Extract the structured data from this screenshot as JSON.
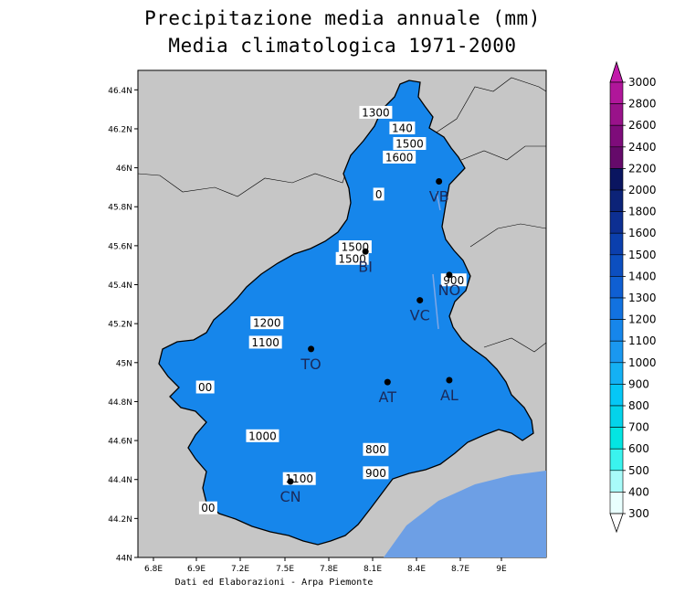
{
  "title": "Precipitazione media annuale (mm)",
  "subtitle": "Media climatologica 1971-2000",
  "footer": "Dati ed Elaborazioni - Arpa Piemonte",
  "map": {
    "lat_ticks": [
      "46.4N",
      "46.2N",
      "46N",
      "45.8N",
      "45.6N",
      "45.4N",
      "45.2N",
      "45N",
      "44.8N",
      "44.6N",
      "44.4N",
      "44.2N",
      "44N"
    ],
    "lon_ticks": [
      "6.8E",
      "6.9E",
      "7.2E",
      "7.5E",
      "7.8E",
      "8.1E",
      "8.4E",
      "8.7E",
      "9E"
    ],
    "cities": [
      {
        "code": "VB",
        "lon": 8.55,
        "lat": 45.93
      },
      {
        "code": "BI",
        "lon": 8.05,
        "lat": 45.57
      },
      {
        "code": "NO",
        "lon": 8.62,
        "lat": 45.45
      },
      {
        "code": "VC",
        "lon": 8.42,
        "lat": 45.32
      },
      {
        "code": "TO",
        "lon": 7.68,
        "lat": 45.07
      },
      {
        "code": "AT",
        "lon": 8.2,
        "lat": 44.9
      },
      {
        "code": "AL",
        "lon": 8.62,
        "lat": 44.91
      },
      {
        "code": "CN",
        "lon": 7.54,
        "lat": 44.39
      }
    ],
    "contour_labels": [
      {
        "text": "1300",
        "lon": 8.12,
        "lat": 46.28
      },
      {
        "text": "140",
        "lon": 8.3,
        "lat": 46.2
      },
      {
        "text": "1500",
        "lon": 8.35,
        "lat": 46.12
      },
      {
        "text": "1600",
        "lon": 8.28,
        "lat": 46.05
      },
      {
        "text": "1500",
        "lon": 7.98,
        "lat": 45.59
      },
      {
        "text": "1500",
        "lon": 7.96,
        "lat": 45.53
      },
      {
        "text": "900",
        "lon": 8.65,
        "lat": 45.42
      },
      {
        "text": "1200",
        "lon": 7.38,
        "lat": 45.2
      },
      {
        "text": "1100",
        "lon": 7.37,
        "lat": 45.1
      },
      {
        "text": "1000",
        "lon": 7.35,
        "lat": 44.62
      },
      {
        "text": "800",
        "lon": 8.12,
        "lat": 44.55
      },
      {
        "text": "900",
        "lon": 8.12,
        "lat": 44.43
      },
      {
        "text": "1100",
        "lon": 7.6,
        "lat": 44.4
      },
      {
        "text": "0",
        "lon": 8.14,
        "lat": 45.86
      },
      {
        "text": "00",
        "lon": 6.96,
        "lat": 44.87
      },
      {
        "text": "00",
        "lon": 6.98,
        "lat": 44.25
      }
    ]
  },
  "legend": {
    "levels": [
      "3000",
      "2800",
      "2600",
      "2400",
      "2200",
      "2000",
      "1800",
      "1600",
      "1500",
      "1400",
      "1300",
      "1200",
      "1100",
      "1000",
      "900",
      "800",
      "700",
      "600",
      "500",
      "400",
      "300"
    ],
    "colors": [
      "#c21aaa",
      "#b0169a",
      "#99128a",
      "#7e0c7a",
      "#650a6a",
      "#0a1560",
      "#0c2378",
      "#0d2f92",
      "#0b3fad",
      "#0c4fc0",
      "#0f5fd2",
      "#1272e0",
      "#1686eb",
      "#1a98f0",
      "#14b1f4",
      "#05c7f6",
      "#04d3ea",
      "#04e5e2",
      "#3af3ee",
      "#a8fbf9",
      "#e9fffe"
    ]
  }
}
